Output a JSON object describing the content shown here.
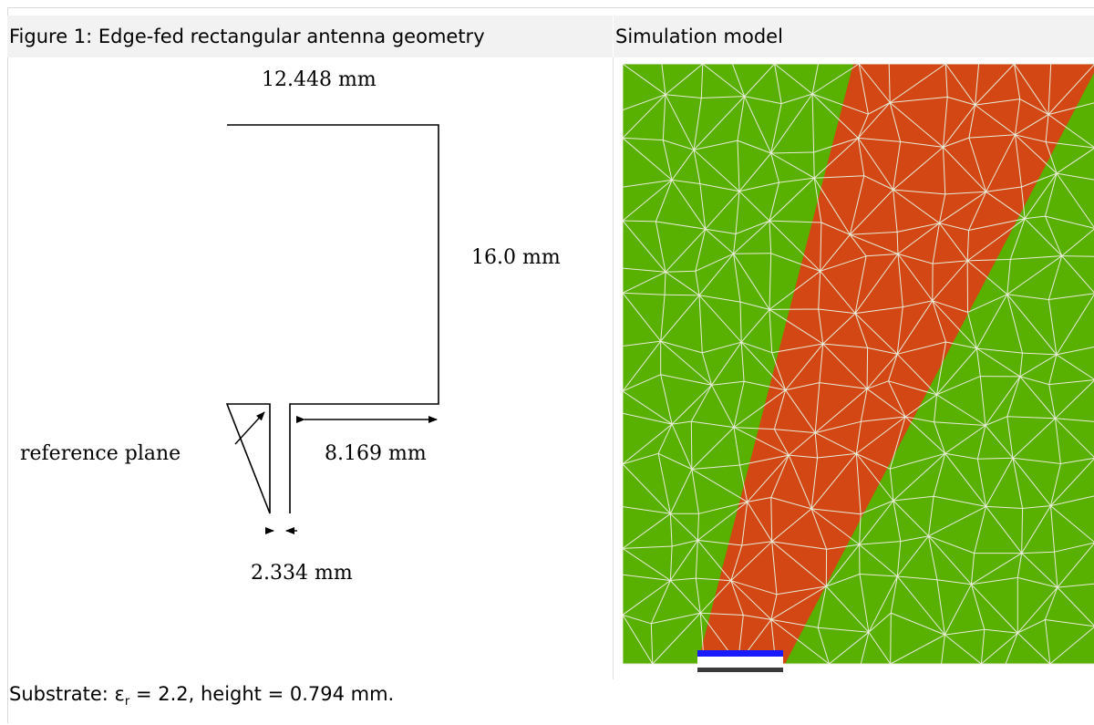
{
  "figure": {
    "title": "Figure 1:  Edge-fed rectangular antenna geometry",
    "dimensions": {
      "width_label": "12.448 mm",
      "height_label": "16.0 mm",
      "inset_label": "8.169 mm",
      "feed_width_label": "2.334 mm"
    },
    "reference_label": "reference plane"
  },
  "simulation": {
    "title": "Simulation model",
    "colors": {
      "substrate": "#58b000",
      "patch": "#d24714",
      "mesh": "#e8ecd8",
      "port_top": "#1a1aff",
      "port_bottom": "#3a3a3a"
    }
  },
  "footer": {
    "prefix": "Substrate:  ε",
    "subscript": "r",
    "suffix": " = 2.2, height = 0.794 mm."
  }
}
